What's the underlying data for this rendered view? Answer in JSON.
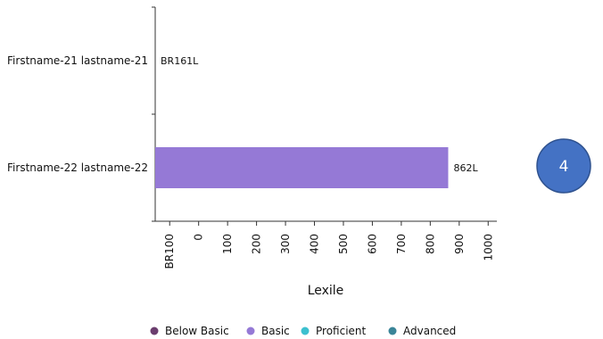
{
  "chart_data": {
    "type": "hbar",
    "categories": [
      "Firstname-21 lastname-21",
      "Firstname-22 lastname-22"
    ],
    "values": [
      -161,
      862
    ],
    "value_labels": [
      "BR161L",
      "862L"
    ],
    "color": "#9579d6",
    "x_label": "Lexile",
    "xlim": [
      -150,
      1030
    ],
    "xticks": [
      {
        "value": -100,
        "label": "BR100"
      },
      0,
      100,
      200,
      300,
      400,
      500,
      600,
      700,
      800,
      900,
      1000
    ],
    "legend": [
      {
        "name": "Below Basic",
        "color": "#6b3d6e"
      },
      {
        "name": "Basic",
        "color": "#9579d6"
      },
      {
        "name": "Proficient",
        "color": "#3cc0cf"
      },
      {
        "name": "Advanced",
        "color": "#3a8598"
      }
    ]
  },
  "badge": "4"
}
